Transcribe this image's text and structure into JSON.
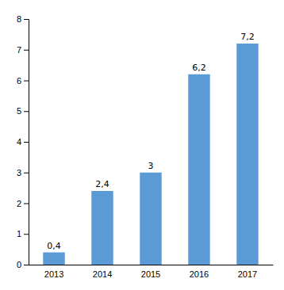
{
  "chart_data": {
    "type": "bar",
    "categories": [
      "2013",
      "2014",
      "2015",
      "2016",
      "2017"
    ],
    "values": [
      0.4,
      2.4,
      3.0,
      6.2,
      7.2
    ],
    "value_labels": [
      "0,4",
      "2,4",
      "3",
      "6,2",
      "7,2"
    ],
    "data_labels": true,
    "color": "#5B9BD5",
    "ylim": [
      0,
      8
    ],
    "yticks": [
      0,
      1,
      2,
      3,
      4,
      5,
      6,
      7,
      8
    ],
    "grid": false
  }
}
